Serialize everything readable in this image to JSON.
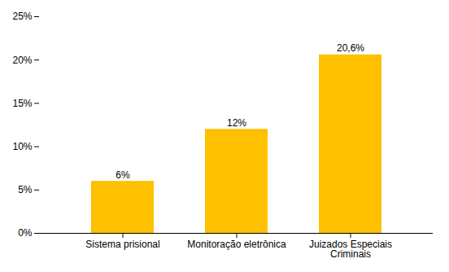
{
  "chart_data": {
    "type": "bar",
    "categories": [
      "Sistema prisional",
      "Monitoração eletrônica",
      "Juizados Especiais\nCriminais"
    ],
    "values": [
      6.0,
      12.0,
      20.6
    ],
    "value_labels": [
      "6%",
      "12%",
      "20,6%"
    ],
    "data_labels": true,
    "color": "#FFC000",
    "ylim": [
      0,
      25
    ],
    "yticks": [
      {
        "value": 0,
        "label": "0%"
      },
      {
        "value": 5,
        "label": "5%"
      },
      {
        "value": 10,
        "label": "10%"
      },
      {
        "value": 15,
        "label": "15%"
      },
      {
        "value": 20,
        "label": "20%"
      },
      {
        "value": 25,
        "label": "25%"
      }
    ],
    "grid": false
  }
}
